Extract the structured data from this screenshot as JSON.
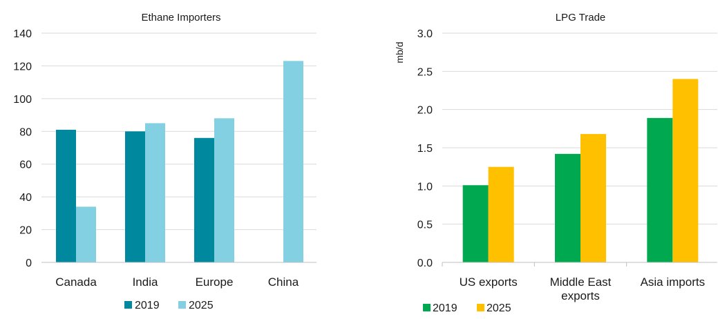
{
  "chart_data": [
    {
      "type": "bar",
      "title": "Ethane Importers",
      "ylabel": "",
      "xlabel": "",
      "categories": [
        "Canada",
        "India",
        "Europe",
        "China"
      ],
      "series": [
        {
          "name": "2019",
          "values": [
            81,
            80,
            76,
            0
          ],
          "color": "#00889e"
        },
        {
          "name": "2025",
          "values": [
            34,
            85,
            88,
            123
          ],
          "color": "#82d0e1"
        }
      ],
      "ylim": [
        0,
        140
      ],
      "yticks": [
        0,
        20,
        40,
        60,
        80,
        100,
        120,
        140
      ],
      "ytick_labels": [
        "0",
        "20",
        "40",
        "60",
        "80",
        "100",
        "120",
        "140"
      ],
      "grid": true,
      "legend": "bottom-center"
    },
    {
      "type": "bar",
      "title": "LPG Trade",
      "ylabel": "mb/d",
      "xlabel": "",
      "categories": [
        "US exports",
        "Middle East exports",
        "Asia imports"
      ],
      "category_lines": [
        [
          "US exports"
        ],
        [
          "Middle East",
          "exports"
        ],
        [
          "Asia imports"
        ]
      ],
      "series": [
        {
          "name": "2019",
          "values": [
            1.01,
            1.42,
            1.89
          ],
          "color": "#00a84f"
        },
        {
          "name": "2025",
          "values": [
            1.25,
            1.68,
            2.4
          ],
          "color": "#ffc000"
        }
      ],
      "ylim": [
        0,
        3
      ],
      "yticks": [
        0,
        0.5,
        1,
        1.5,
        2,
        2.5,
        3
      ],
      "ytick_labels": [
        "0.0",
        "0.5",
        "1.0",
        "1.5",
        "2.0",
        "2.5",
        "3.0"
      ],
      "grid": true,
      "legend": "bottom-left"
    }
  ]
}
